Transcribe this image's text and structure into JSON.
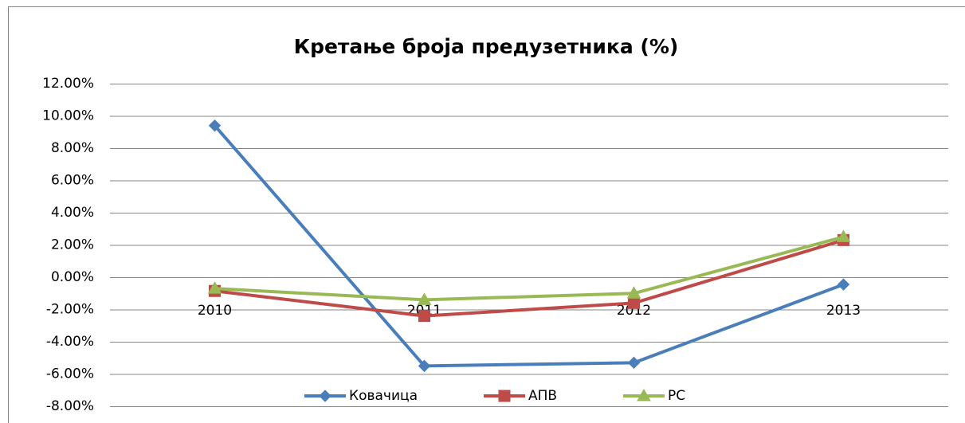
{
  "chart_data": {
    "type": "line",
    "title": "Кретање броја предузетника (%)",
    "categories": [
      "2010",
      "2011",
      "2012",
      "2013"
    ],
    "series": [
      {
        "name": "Ковачица",
        "color": "#4a7ebb",
        "marker": "diamond",
        "values": [
          9.4,
          -5.5,
          -5.3,
          -0.45
        ]
      },
      {
        "name": "АПВ",
        "color": "#be4b48",
        "marker": "square",
        "values": [
          -0.85,
          -2.4,
          -1.6,
          2.3
        ]
      },
      {
        "name": "РС",
        "color": "#98b954",
        "marker": "triangle",
        "values": [
          -0.7,
          -1.4,
          -1.0,
          2.5
        ]
      }
    ],
    "ylim": [
      -8,
      12
    ],
    "yticks": [
      {
        "value": -8,
        "label": "-8.00%"
      },
      {
        "value": -6,
        "label": "-6.00%"
      },
      {
        "value": -4,
        "label": "-4.00%"
      },
      {
        "value": -2,
        "label": "-2.00%"
      },
      {
        "value": 0,
        "label": "0.00%"
      },
      {
        "value": 2,
        "label": "2.00%"
      },
      {
        "value": 4,
        "label": "4.00%"
      },
      {
        "value": 6,
        "label": "6.00%"
      },
      {
        "value": 8,
        "label": "8.00%"
      },
      {
        "value": 10,
        "label": "10.00%"
      },
      {
        "value": 12,
        "label": "12.00%"
      }
    ],
    "grid": true,
    "legend": "bottom"
  }
}
